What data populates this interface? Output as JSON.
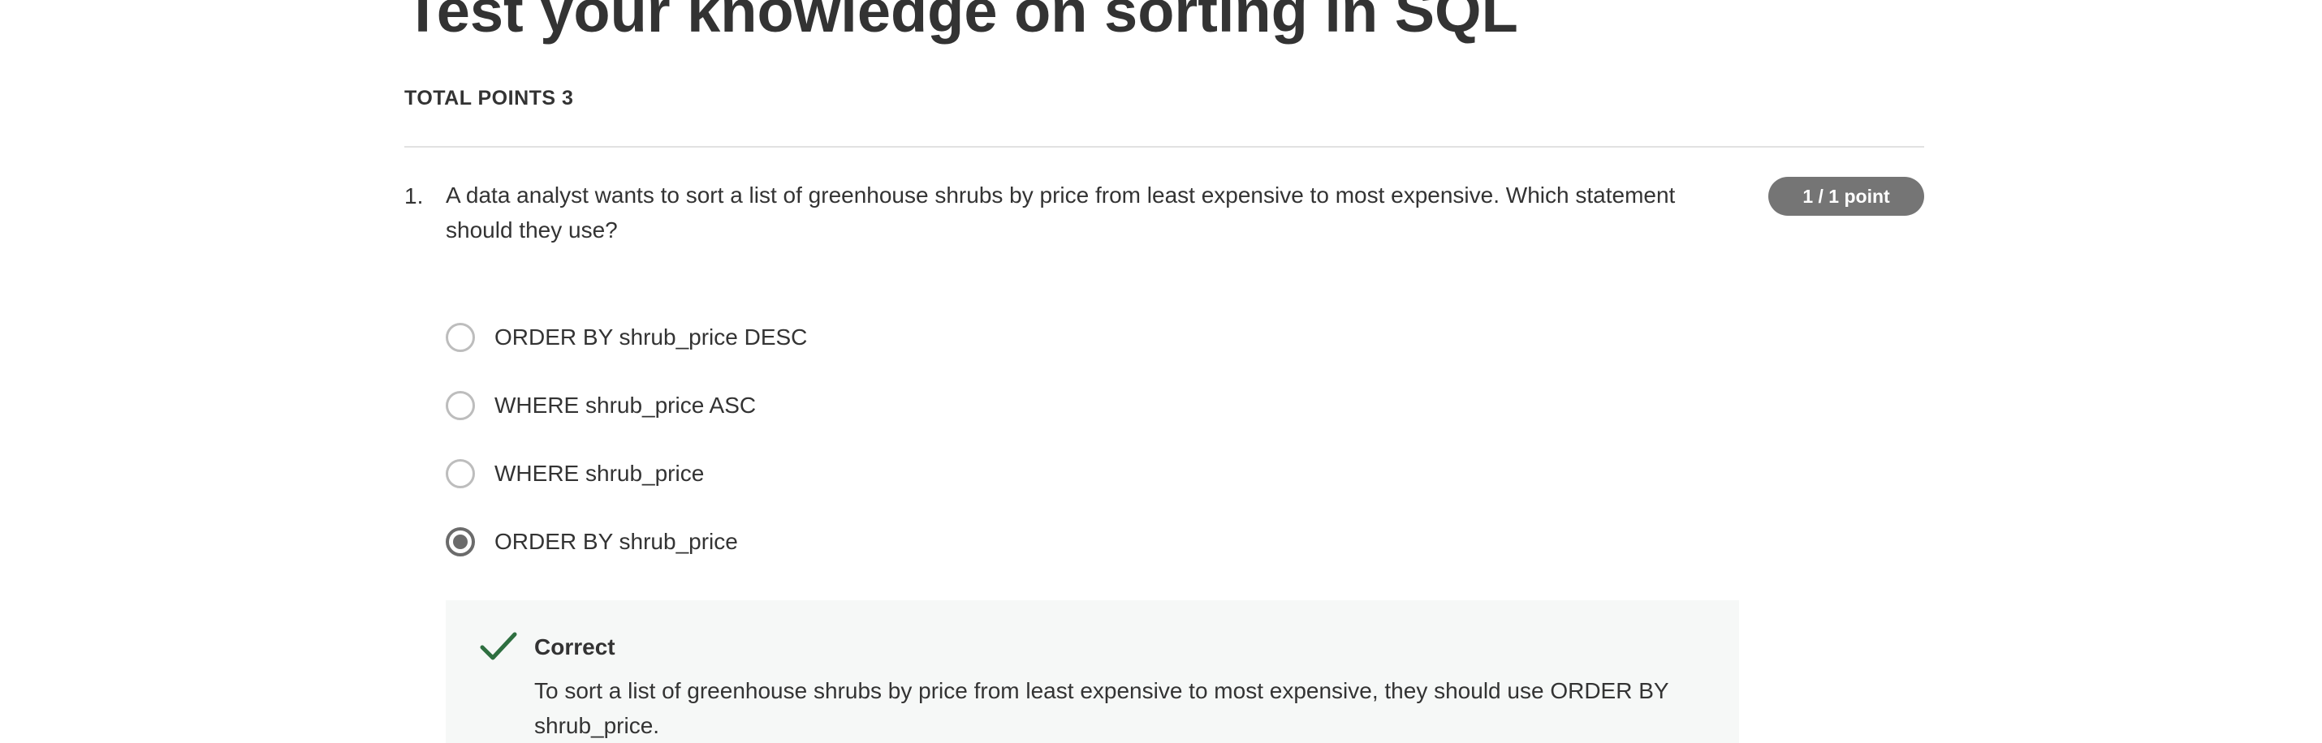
{
  "quiz": {
    "title": "Test your knowledge on sorting in SQL",
    "total_points": "TOTAL POINTS 3"
  },
  "question": {
    "number": "1.",
    "prompt": "A data analyst wants to sort a list of greenhouse shrubs by price from least expensive to most expensive. Which statement should they use?",
    "score_badge": "1 / 1 point",
    "options": [
      {
        "label": "ORDER BY shrub_price DESC",
        "selected": false
      },
      {
        "label": "WHERE shrub_price ASC",
        "selected": false
      },
      {
        "label": "WHERE shrub_price",
        "selected": false
      },
      {
        "label": "ORDER BY shrub_price",
        "selected": true
      }
    ],
    "feedback": {
      "status": "Correct",
      "icon": "checkmark-icon",
      "icon_color": "#2e6f40",
      "explanation": "To sort a list of greenhouse shrubs by price from least expensive to most expensive, they should use ORDER BY shrub_price."
    }
  },
  "colors": {
    "badge_bg": "#757575",
    "feedback_bg": "#f6f8f7",
    "text": "#333333"
  }
}
